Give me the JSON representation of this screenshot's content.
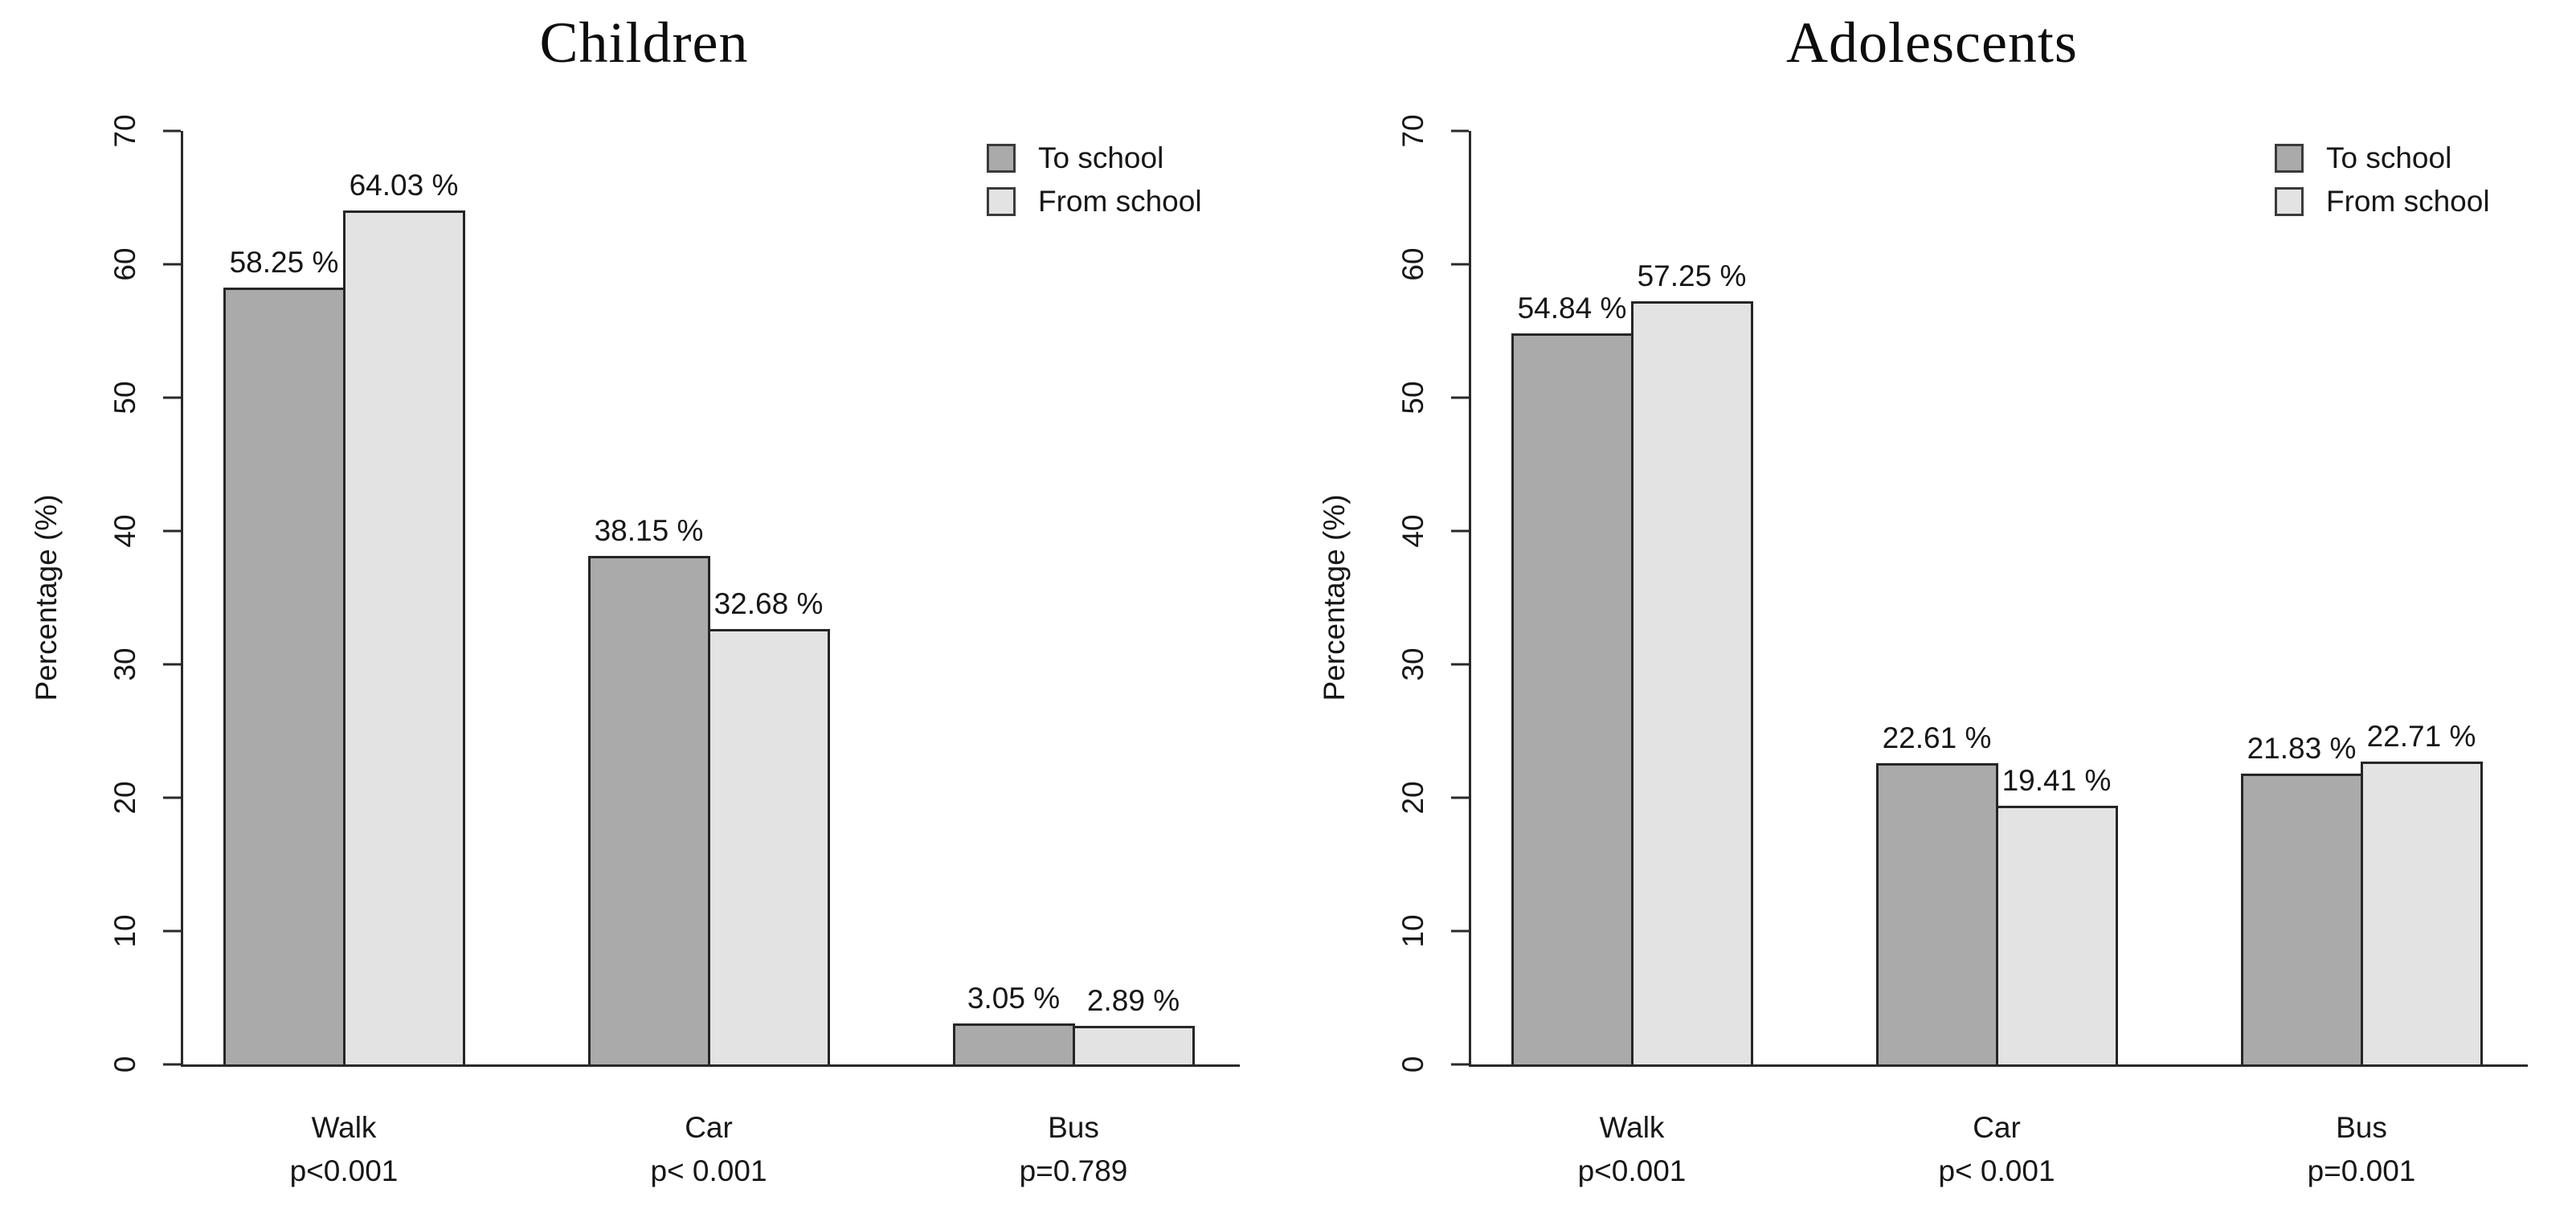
{
  "figure_background": "#ffffff",
  "colors": {
    "to_school_fill": "#aaaaaa",
    "from_school_fill": "#e3e3e3",
    "bar_border": "#262626",
    "axis": "#2a2a2a",
    "text": "#161616"
  },
  "chart_data": [
    {
      "type": "bar",
      "title": "Children",
      "ylabel": "Percentage (%)",
      "ylim": [
        0,
        70
      ],
      "yticks": [
        0,
        10,
        20,
        30,
        40,
        50,
        60,
        70
      ],
      "grid": false,
      "legend_position": "top-right",
      "categories": [
        "Walk",
        "Car",
        "Bus"
      ],
      "p_values": [
        "p<0.001",
        "p< 0.001",
        "p=0.789"
      ],
      "series": [
        {
          "name": "To school",
          "color": "#aaaaaa",
          "values": [
            58.25,
            38.15,
            3.05
          ],
          "labels": [
            "58.25 %",
            "38.15 %",
            "3.05 %"
          ]
        },
        {
          "name": "From school",
          "color": "#e3e3e3",
          "values": [
            64.03,
            32.68,
            2.89
          ],
          "labels": [
            "64.03 %",
            "32.68 %",
            "2.89 %"
          ]
        }
      ]
    },
    {
      "type": "bar",
      "title": "Adolescents",
      "ylabel": "Percentage (%)",
      "ylim": [
        0,
        70
      ],
      "yticks": [
        0,
        10,
        20,
        30,
        40,
        50,
        60,
        70
      ],
      "grid": false,
      "legend_position": "top-right",
      "categories": [
        "Walk",
        "Car",
        "Bus"
      ],
      "p_values": [
        "p<0.001",
        "p< 0.001",
        "p=0.001"
      ],
      "series": [
        {
          "name": "To school",
          "color": "#aaaaaa",
          "values": [
            54.84,
            22.61,
            21.83
          ],
          "labels": [
            "54.84 %",
            "22.61 %",
            "21.83 %"
          ]
        },
        {
          "name": "From school",
          "color": "#e3e3e3",
          "values": [
            57.25,
            19.41,
            22.71
          ],
          "labels": [
            "57.25 %",
            "19.41 %",
            "22.71 %"
          ]
        }
      ]
    }
  ]
}
